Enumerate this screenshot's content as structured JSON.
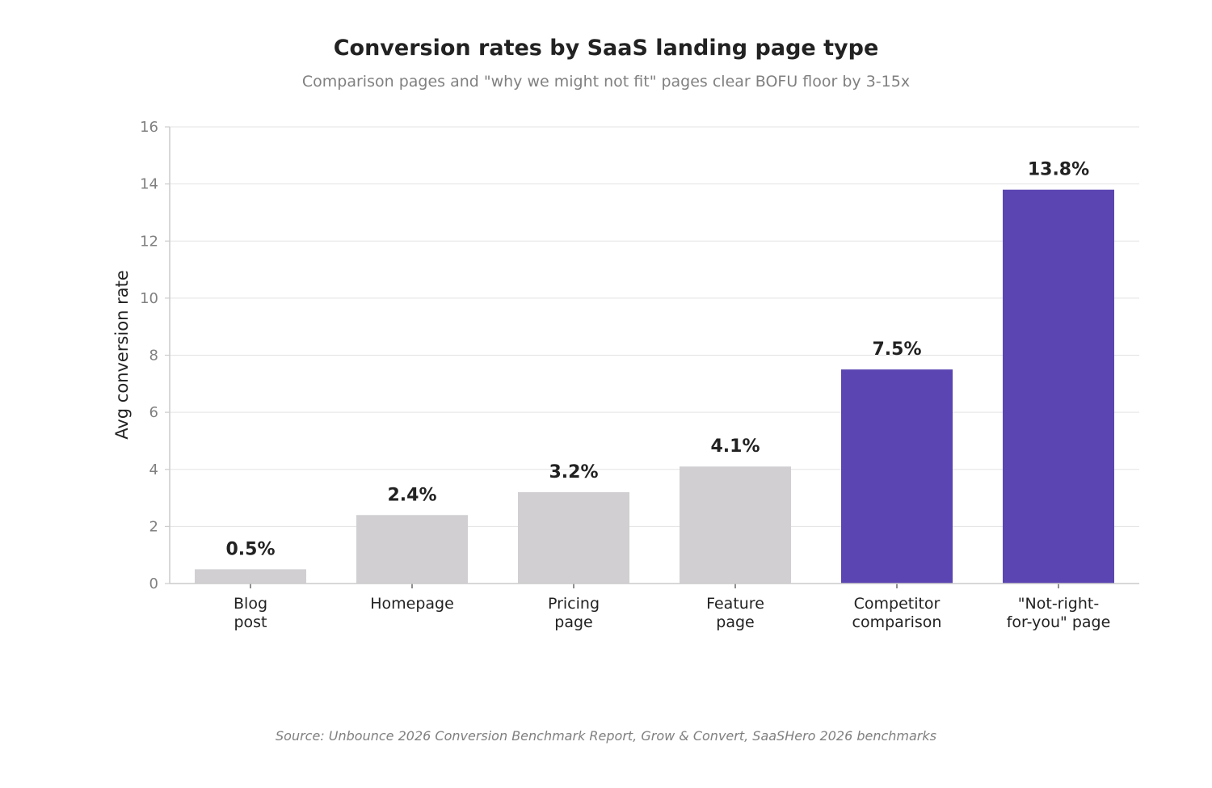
{
  "chart_data": {
    "type": "bar",
    "title": "Conversion rates by SaaS landing page type",
    "subtitle": "Comparison pages and \"why we might not fit\" pages clear BOFU floor by 3-15x",
    "xlabel": "",
    "ylabel": "Avg conversion rate",
    "ylim": [
      0,
      16
    ],
    "yticks": [
      0,
      2,
      4,
      6,
      8,
      10,
      12,
      14,
      16
    ],
    "grid": "horizontal",
    "categories": [
      [
        "Blog",
        "post"
      ],
      [
        "Homepage"
      ],
      [
        "Pricing",
        "page"
      ],
      [
        "Feature",
        "page"
      ],
      [
        "Competitor",
        "comparison"
      ],
      [
        "\"Not-right-",
        "for-you\" page"
      ]
    ],
    "values": [
      0.5,
      2.4,
      3.2,
      4.1,
      7.5,
      13.8
    ],
    "data_labels": [
      "0.5%",
      "2.4%",
      "3.2%",
      "4.1%",
      "7.5%",
      "13.8%"
    ],
    "highlight": [
      false,
      false,
      false,
      false,
      true,
      true
    ],
    "colors": {
      "base": "#d1cfd2",
      "highlight": "#5b45b2",
      "grid": "#e3e3e3",
      "axis": "#cccccc"
    },
    "source": "Source: Unbounce 2026 Conversion Benchmark Report, Grow & Convert, SaaSHero 2026 benchmarks"
  }
}
